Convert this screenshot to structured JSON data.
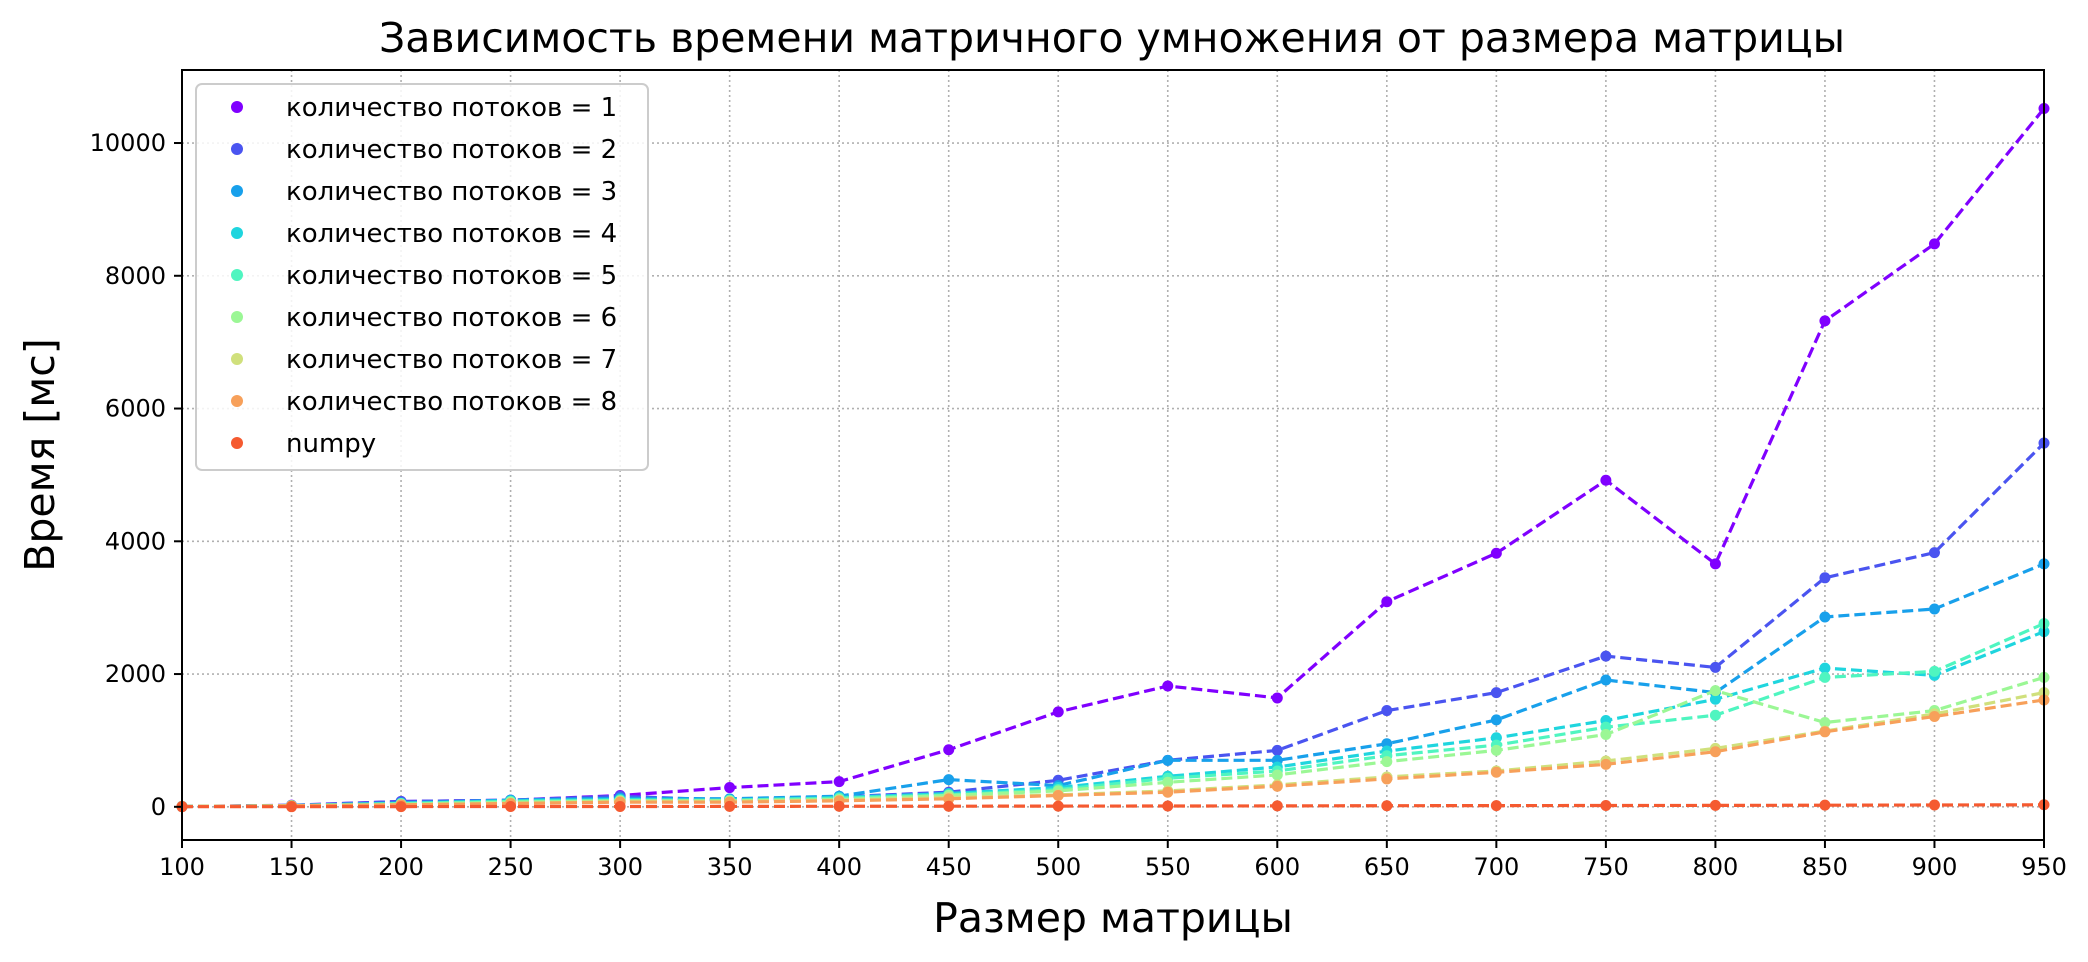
{
  "chart_data": {
    "type": "line",
    "title": "Зависимость времени матричного умножения от размера матрицы",
    "xlabel": "Размер матрицы",
    "ylabel": "Время [мс]",
    "xlim": [
      100,
      950
    ],
    "ylim": [
      -500,
      11100
    ],
    "x_ticks": [
      "100",
      "150",
      "200",
      "250",
      "300",
      "350",
      "400",
      "450",
      "500",
      "550",
      "600",
      "650",
      "700",
      "750",
      "800",
      "850",
      "900",
      "950"
    ],
    "y_ticks": [
      "0",
      "2000",
      "4000",
      "6000",
      "8000",
      "10000"
    ],
    "grid": true,
    "legend_position": "top-left",
    "x": [
      100,
      150,
      200,
      250,
      300,
      350,
      400,
      450,
      500,
      550,
      600,
      650,
      700,
      750,
      800,
      850,
      900,
      950
    ],
    "series": [
      {
        "name": "количество потоков = 1",
        "color": "#8000ff",
        "values": [
          5,
          25,
          80,
          100,
          170,
          290,
          380,
          860,
          1430,
          1820,
          1640,
          3090,
          3820,
          4920,
          3660,
          7320,
          8480,
          10520
        ]
      },
      {
        "name": "количество потоков = 2",
        "color": "#4a54f0",
        "values": [
          5,
          20,
          80,
          100,
          160,
          100,
          150,
          220,
          400,
          700,
          850,
          1450,
          1720,
          2270,
          2100,
          3450,
          3830,
          5480
        ]
      },
      {
        "name": "количество потоков = 3",
        "color": "#18a0eb",
        "values": [
          5,
          20,
          60,
          100,
          130,
          120,
          160,
          410,
          320,
          700,
          700,
          950,
          1310,
          1910,
          1720,
          2860,
          2980,
          3660
        ]
      },
      {
        "name": "количество потоков = 4",
        "color": "#1fd5de",
        "values": [
          5,
          20,
          50,
          90,
          110,
          100,
          140,
          200,
          290,
          460,
          600,
          840,
          1040,
          1300,
          1620,
          2090,
          1980,
          2640
        ]
      },
      {
        "name": "количество потоков = 5",
        "color": "#4ff5c0",
        "values": [
          5,
          20,
          50,
          80,
          100,
          100,
          130,
          180,
          260,
          430,
          540,
          770,
          930,
          1200,
          1380,
          1950,
          2040,
          2760
        ]
      },
      {
        "name": "количество потоков = 6",
        "color": "#9bf795",
        "values": [
          5,
          15,
          40,
          70,
          90,
          90,
          110,
          170,
          240,
          370,
          480,
          680,
          850,
          1090,
          1750,
          1270,
          1450,
          1950
        ]
      },
      {
        "name": "количество потоков = 7",
        "color": "#d0e07c",
        "values": [
          5,
          15,
          30,
          50,
          80,
          80,
          100,
          140,
          180,
          240,
          330,
          450,
          540,
          690,
          880,
          1140,
          1400,
          1720
        ]
      },
      {
        "name": "количество потоков = 8",
        "color": "#f7a05a",
        "values": [
          5,
          15,
          30,
          50,
          70,
          70,
          90,
          120,
          170,
          220,
          310,
          420,
          520,
          640,
          830,
          1130,
          1360,
          1610
        ]
      },
      {
        "name": "numpy",
        "color": "#f55a30",
        "values": [
          2,
          2,
          3,
          4,
          5,
          6,
          8,
          9,
          10,
          12,
          14,
          16,
          18,
          20,
          22,
          25,
          28,
          31
        ]
      }
    ]
  }
}
